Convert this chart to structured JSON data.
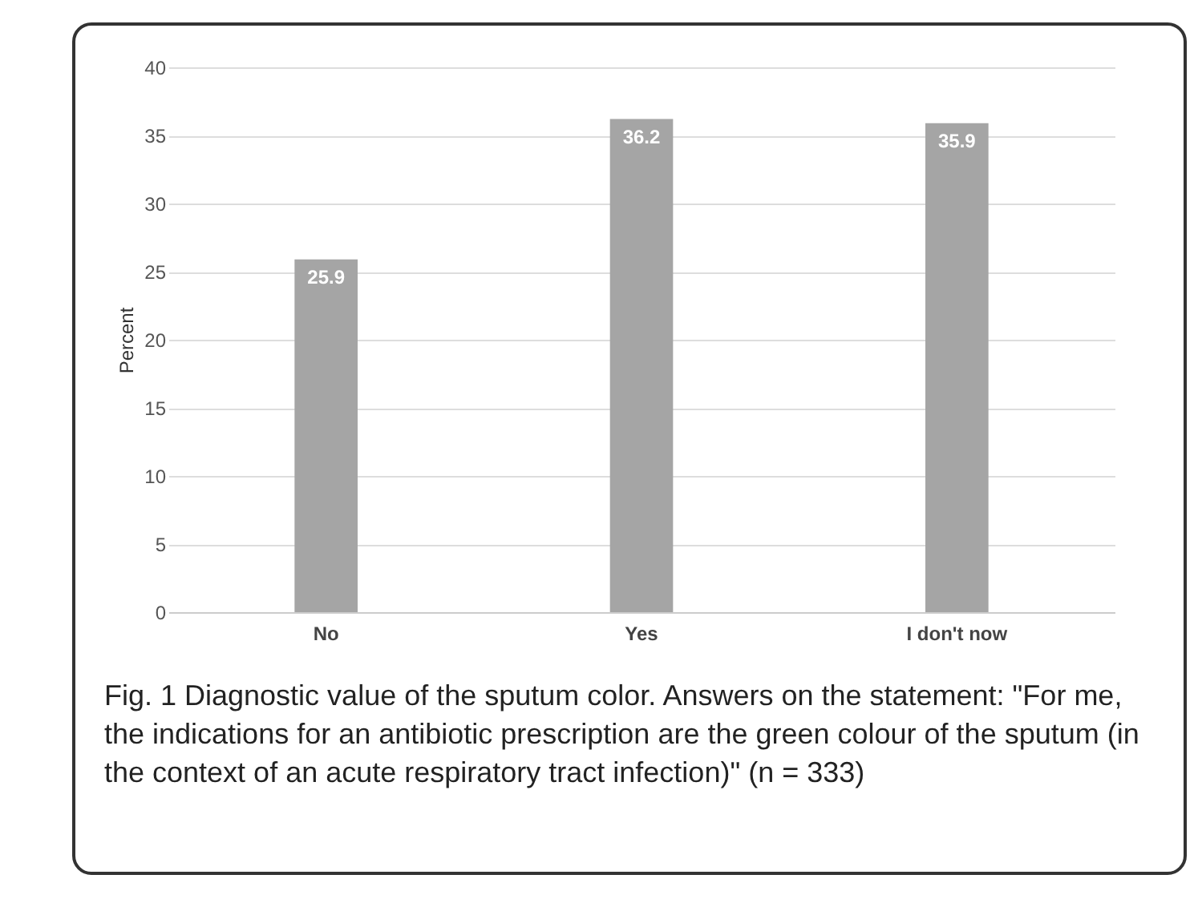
{
  "chart_data": {
    "type": "bar",
    "categories": [
      "No",
      "Yes",
      "I don't now"
    ],
    "values": [
      25.9,
      36.2,
      35.9
    ],
    "color": "#a5a5a5",
    "ylabel": "Percent",
    "ylim": [
      0,
      40
    ],
    "yticks": [
      0,
      5,
      10,
      15,
      20,
      25,
      30,
      35,
      40
    ],
    "grid": "y",
    "data_labels": true,
    "annotations": [
      "Fig. 1 Diagnostic value of the sputum color. Answers on the statement: \"For me, the indications for an antibiotic prescription are the green colour of the sputum (in the context of an acute respiratory tract infection)\" (n = 333)"
    ]
  }
}
